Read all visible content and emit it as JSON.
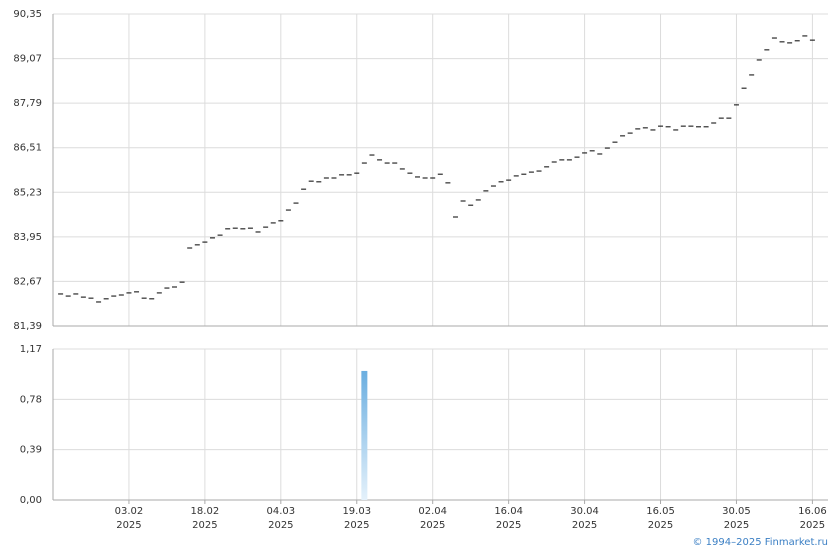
{
  "chart_data": [
    {
      "type": "dash",
      "color": "#000000",
      "values": [
        82.31,
        82.25,
        82.31,
        82.22,
        82.19,
        82.08,
        82.17,
        82.25,
        82.28,
        82.34,
        82.37,
        82.19,
        82.17,
        82.34,
        82.48,
        82.51,
        82.65,
        83.63,
        83.72,
        83.8,
        83.92,
        84.0,
        84.18,
        84.2,
        84.18,
        84.2,
        84.09,
        84.23,
        84.35,
        84.41,
        84.72,
        84.92,
        85.32,
        85.55,
        85.53,
        85.64,
        85.64,
        85.73,
        85.73,
        85.78,
        86.07,
        86.3,
        86.16,
        86.07,
        86.07,
        85.9,
        85.78,
        85.67,
        85.64,
        85.64,
        85.75,
        85.5,
        84.52,
        84.98,
        84.86,
        85.01,
        85.27,
        85.41,
        85.53,
        85.58,
        85.7,
        85.75,
        85.81,
        85.84,
        85.96,
        86.1,
        86.16,
        86.16,
        86.24,
        86.36,
        86.42,
        86.33,
        86.5,
        86.67,
        86.85,
        86.93,
        87.05,
        87.08,
        87.02,
        87.13,
        87.11,
        87.02,
        87.13,
        87.13,
        87.11,
        87.11,
        87.22,
        87.36,
        87.36,
        87.74,
        88.22,
        88.6,
        89.03,
        89.32,
        89.66,
        89.55,
        89.52,
        89.58,
        89.72,
        89.6
      ],
      "ylim": [
        81.39,
        90.35
      ],
      "yticks": [
        {
          "value": 81.39,
          "label": "81,39"
        },
        {
          "value": 82.67,
          "label": "82,67"
        },
        {
          "value": 83.95,
          "label": "83,95"
        },
        {
          "value": 85.23,
          "label": "85,23"
        },
        {
          "value": 86.51,
          "label": "86,51"
        },
        {
          "value": 87.79,
          "label": "87,79"
        },
        {
          "value": 89.07,
          "label": "89,07"
        },
        {
          "value": 90.35,
          "label": "90,35"
        }
      ],
      "grid": true
    },
    {
      "type": "bar",
      "color": "#6aaee0",
      "categories": [
        null,
        null,
        null,
        null,
        null,
        null,
        null,
        null,
        null,
        [
          "03.02",
          "2025"
        ],
        null,
        null,
        null,
        null,
        null,
        null,
        null,
        null,
        null,
        [
          "18.02",
          "2025"
        ],
        null,
        null,
        null,
        null,
        null,
        null,
        null,
        null,
        null,
        [
          "04.03",
          "2025"
        ],
        null,
        null,
        null,
        null,
        null,
        null,
        null,
        null,
        null,
        [
          "19.03",
          "2025"
        ],
        null,
        null,
        null,
        null,
        null,
        null,
        null,
        null,
        null,
        [
          "02.04",
          "2025"
        ],
        null,
        null,
        null,
        null,
        null,
        null,
        null,
        null,
        null,
        [
          "16.04",
          "2025"
        ],
        null,
        null,
        null,
        null,
        null,
        null,
        null,
        null,
        null,
        [
          "30.04",
          "2025"
        ],
        null,
        null,
        null,
        null,
        null,
        null,
        null,
        null,
        null,
        [
          "16.05",
          "2025"
        ],
        null,
        null,
        null,
        null,
        null,
        null,
        null,
        null,
        null,
        [
          "30.05",
          "2025"
        ],
        null,
        null,
        null,
        null,
        null,
        null,
        null,
        null,
        null,
        [
          "16.06",
          "2025"
        ]
      ],
      "values": [
        0,
        0,
        0,
        0,
        0,
        0,
        0,
        0,
        0,
        0,
        0,
        0,
        0,
        0,
        0,
        0,
        0,
        0,
        0,
        0,
        0,
        0,
        0,
        0,
        0,
        0,
        0,
        0,
        0,
        0,
        0,
        0,
        0,
        0,
        0,
        0,
        0,
        0,
        0,
        0,
        1.0,
        0,
        0,
        0,
        0,
        0,
        0,
        0,
        0,
        0,
        0,
        0,
        0,
        0,
        0,
        0,
        0,
        0,
        0,
        0,
        0,
        0,
        0,
        0,
        0,
        0,
        0,
        0,
        0,
        0,
        0,
        0,
        0,
        0,
        0,
        0,
        0,
        0,
        0,
        0,
        0,
        0,
        0,
        0,
        0,
        0,
        0,
        0,
        0,
        0,
        0,
        0,
        0,
        0,
        0,
        0,
        0,
        0,
        0,
        0
      ],
      "ylim": [
        0,
        1.17
      ],
      "yticks": [
        {
          "value": 0,
          "label": "0,00"
        },
        {
          "value": 0.39,
          "label": "0,39"
        },
        {
          "value": 0.78,
          "label": "0,78"
        },
        {
          "value": 1.17,
          "label": "1,17"
        }
      ],
      "grid": true
    }
  ],
  "footer": "© 1994–2025 Finmarket.ru"
}
